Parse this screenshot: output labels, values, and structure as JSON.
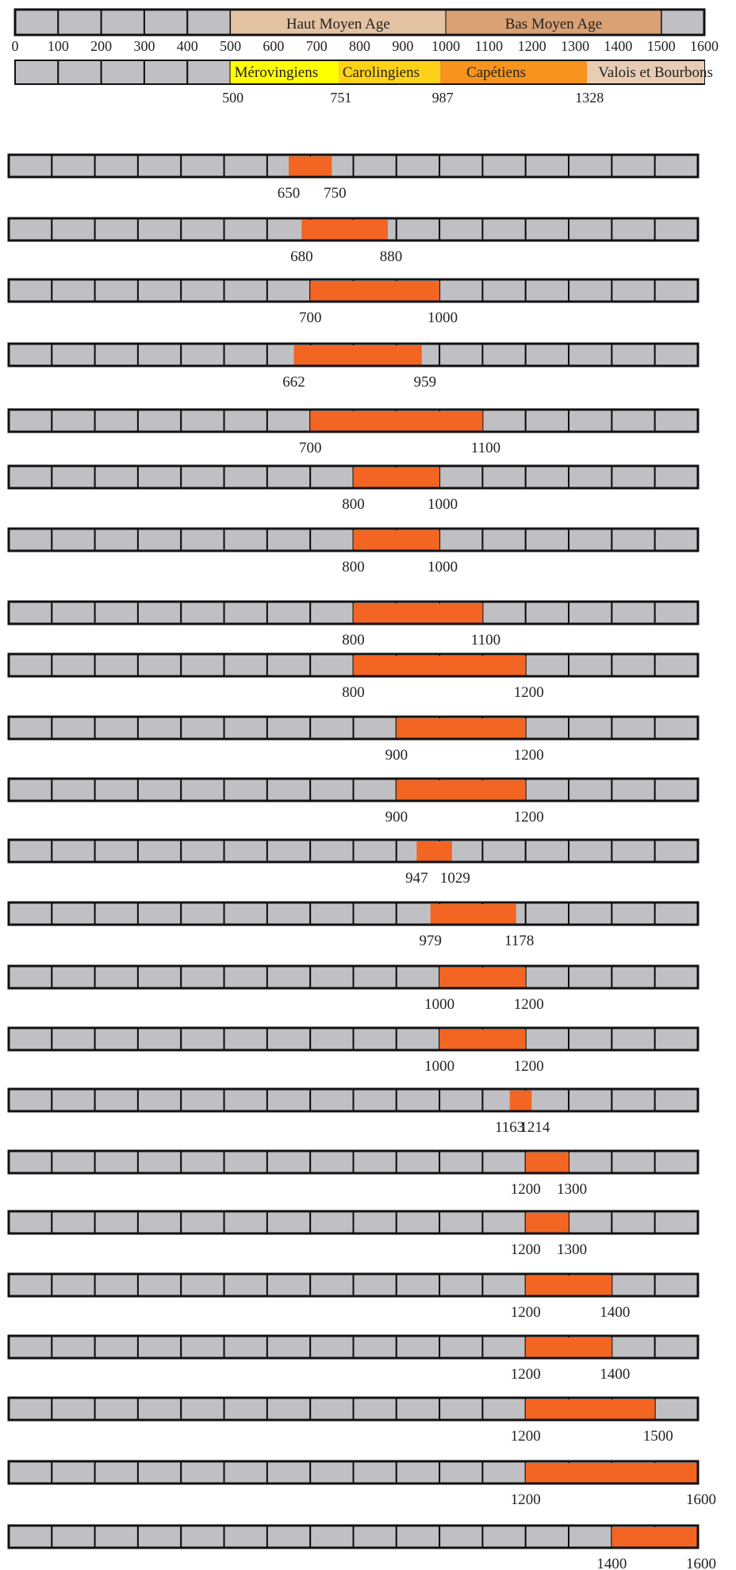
{
  "colors": {
    "cell_fill": "#c0c0c4",
    "cell_stroke": "#111111",
    "bar_fill": "#f26522",
    "haut_moyen_age": "#e3c3a2",
    "bas_moyen_age": "#d9a174",
    "merovingiens": "#ffff00",
    "carolingiens": "#ffd21a",
    "capetiens": "#f7941d",
    "valois_bourbons": "#e8cdb4"
  },
  "scale": {
    "min": 0,
    "max": 1600,
    "step": 100
  },
  "axis_ticks": [
    "0",
    "100",
    "200",
    "300",
    "400",
    "500",
    "600",
    "700",
    "800",
    "900",
    "1000",
    "1100",
    "1200",
    "1300",
    "1400",
    "1500",
    "1600"
  ],
  "ages": [
    {
      "label": "Haut Moyen Age",
      "start": 500,
      "end": 1000,
      "color": "#e3c3a2"
    },
    {
      "label": "Bas Moyen Age",
      "start": 1000,
      "end": 1500,
      "color": "#d9a174"
    }
  ],
  "dynasties": [
    {
      "label": "Mérovingiens",
      "start": 500,
      "end": 751,
      "color": "#ffff00"
    },
    {
      "label": "Carolingiens",
      "start": 751,
      "end": 987,
      "color": "#ffd21a"
    },
    {
      "label": "Capétiens",
      "start": 987,
      "end": 1328,
      "color": "#f7941d"
    },
    {
      "label": "Valois et Bourbons",
      "start": 1328,
      "end": 1600,
      "color": "#e8cdb4"
    }
  ],
  "dynasty_dates": [
    "500",
    "751",
    "987",
    "1328"
  ],
  "periods": [
    {
      "start": 650,
      "end": 750,
      "start_label": "650",
      "end_label": "750"
    },
    {
      "start": 680,
      "end": 880,
      "start_label": "680",
      "end_label": "880"
    },
    {
      "start": 700,
      "end": 1000,
      "start_label": "700",
      "end_label": "1000"
    },
    {
      "start": 662,
      "end": 959,
      "start_label": "662",
      "end_label": "959"
    },
    {
      "start": 700,
      "end": 1100,
      "start_label": "700",
      "end_label": "1100"
    },
    {
      "start": 800,
      "end": 1000,
      "start_label": "800",
      "end_label": "1000"
    },
    {
      "start": 800,
      "end": 1000,
      "start_label": "800",
      "end_label": "1000"
    },
    {
      "start": 800,
      "end": 1100,
      "start_label": "800",
      "end_label": "1100"
    },
    {
      "start": 800,
      "end": 1200,
      "start_label": "800",
      "end_label": "1200"
    },
    {
      "start": 900,
      "end": 1200,
      "start_label": "900",
      "end_label": "1200"
    },
    {
      "start": 900,
      "end": 1200,
      "start_label": "900",
      "end_label": "1200"
    },
    {
      "start": 947,
      "end": 1029,
      "start_label": "947",
      "end_label": "1029"
    },
    {
      "start": 979,
      "end": 1178,
      "start_label": "979",
      "end_label": "1178"
    },
    {
      "start": 1000,
      "end": 1200,
      "start_label": "1000",
      "end_label": "1200"
    },
    {
      "start": 1000,
      "end": 1200,
      "start_label": "1000",
      "end_label": "1200"
    },
    {
      "start": 1163,
      "end": 1214,
      "start_label": "1163",
      "end_label": "1214"
    },
    {
      "start": 1200,
      "end": 1300,
      "start_label": "1200",
      "end_label": "1300"
    },
    {
      "start": 1200,
      "end": 1300,
      "start_label": "1200",
      "end_label": "1300"
    },
    {
      "start": 1200,
      "end": 1400,
      "start_label": "1200",
      "end_label": "1400"
    },
    {
      "start": 1200,
      "end": 1400,
      "start_label": "1200",
      "end_label": "1400"
    },
    {
      "start": 1200,
      "end": 1500,
      "start_label": "1200",
      "end_label": "1500"
    },
    {
      "start": 1200,
      "end": 1600,
      "start_label": "1200",
      "end_label": "1600"
    },
    {
      "start": 1400,
      "end": 1600,
      "start_label": "1400",
      "end_label": "1600"
    }
  ]
}
